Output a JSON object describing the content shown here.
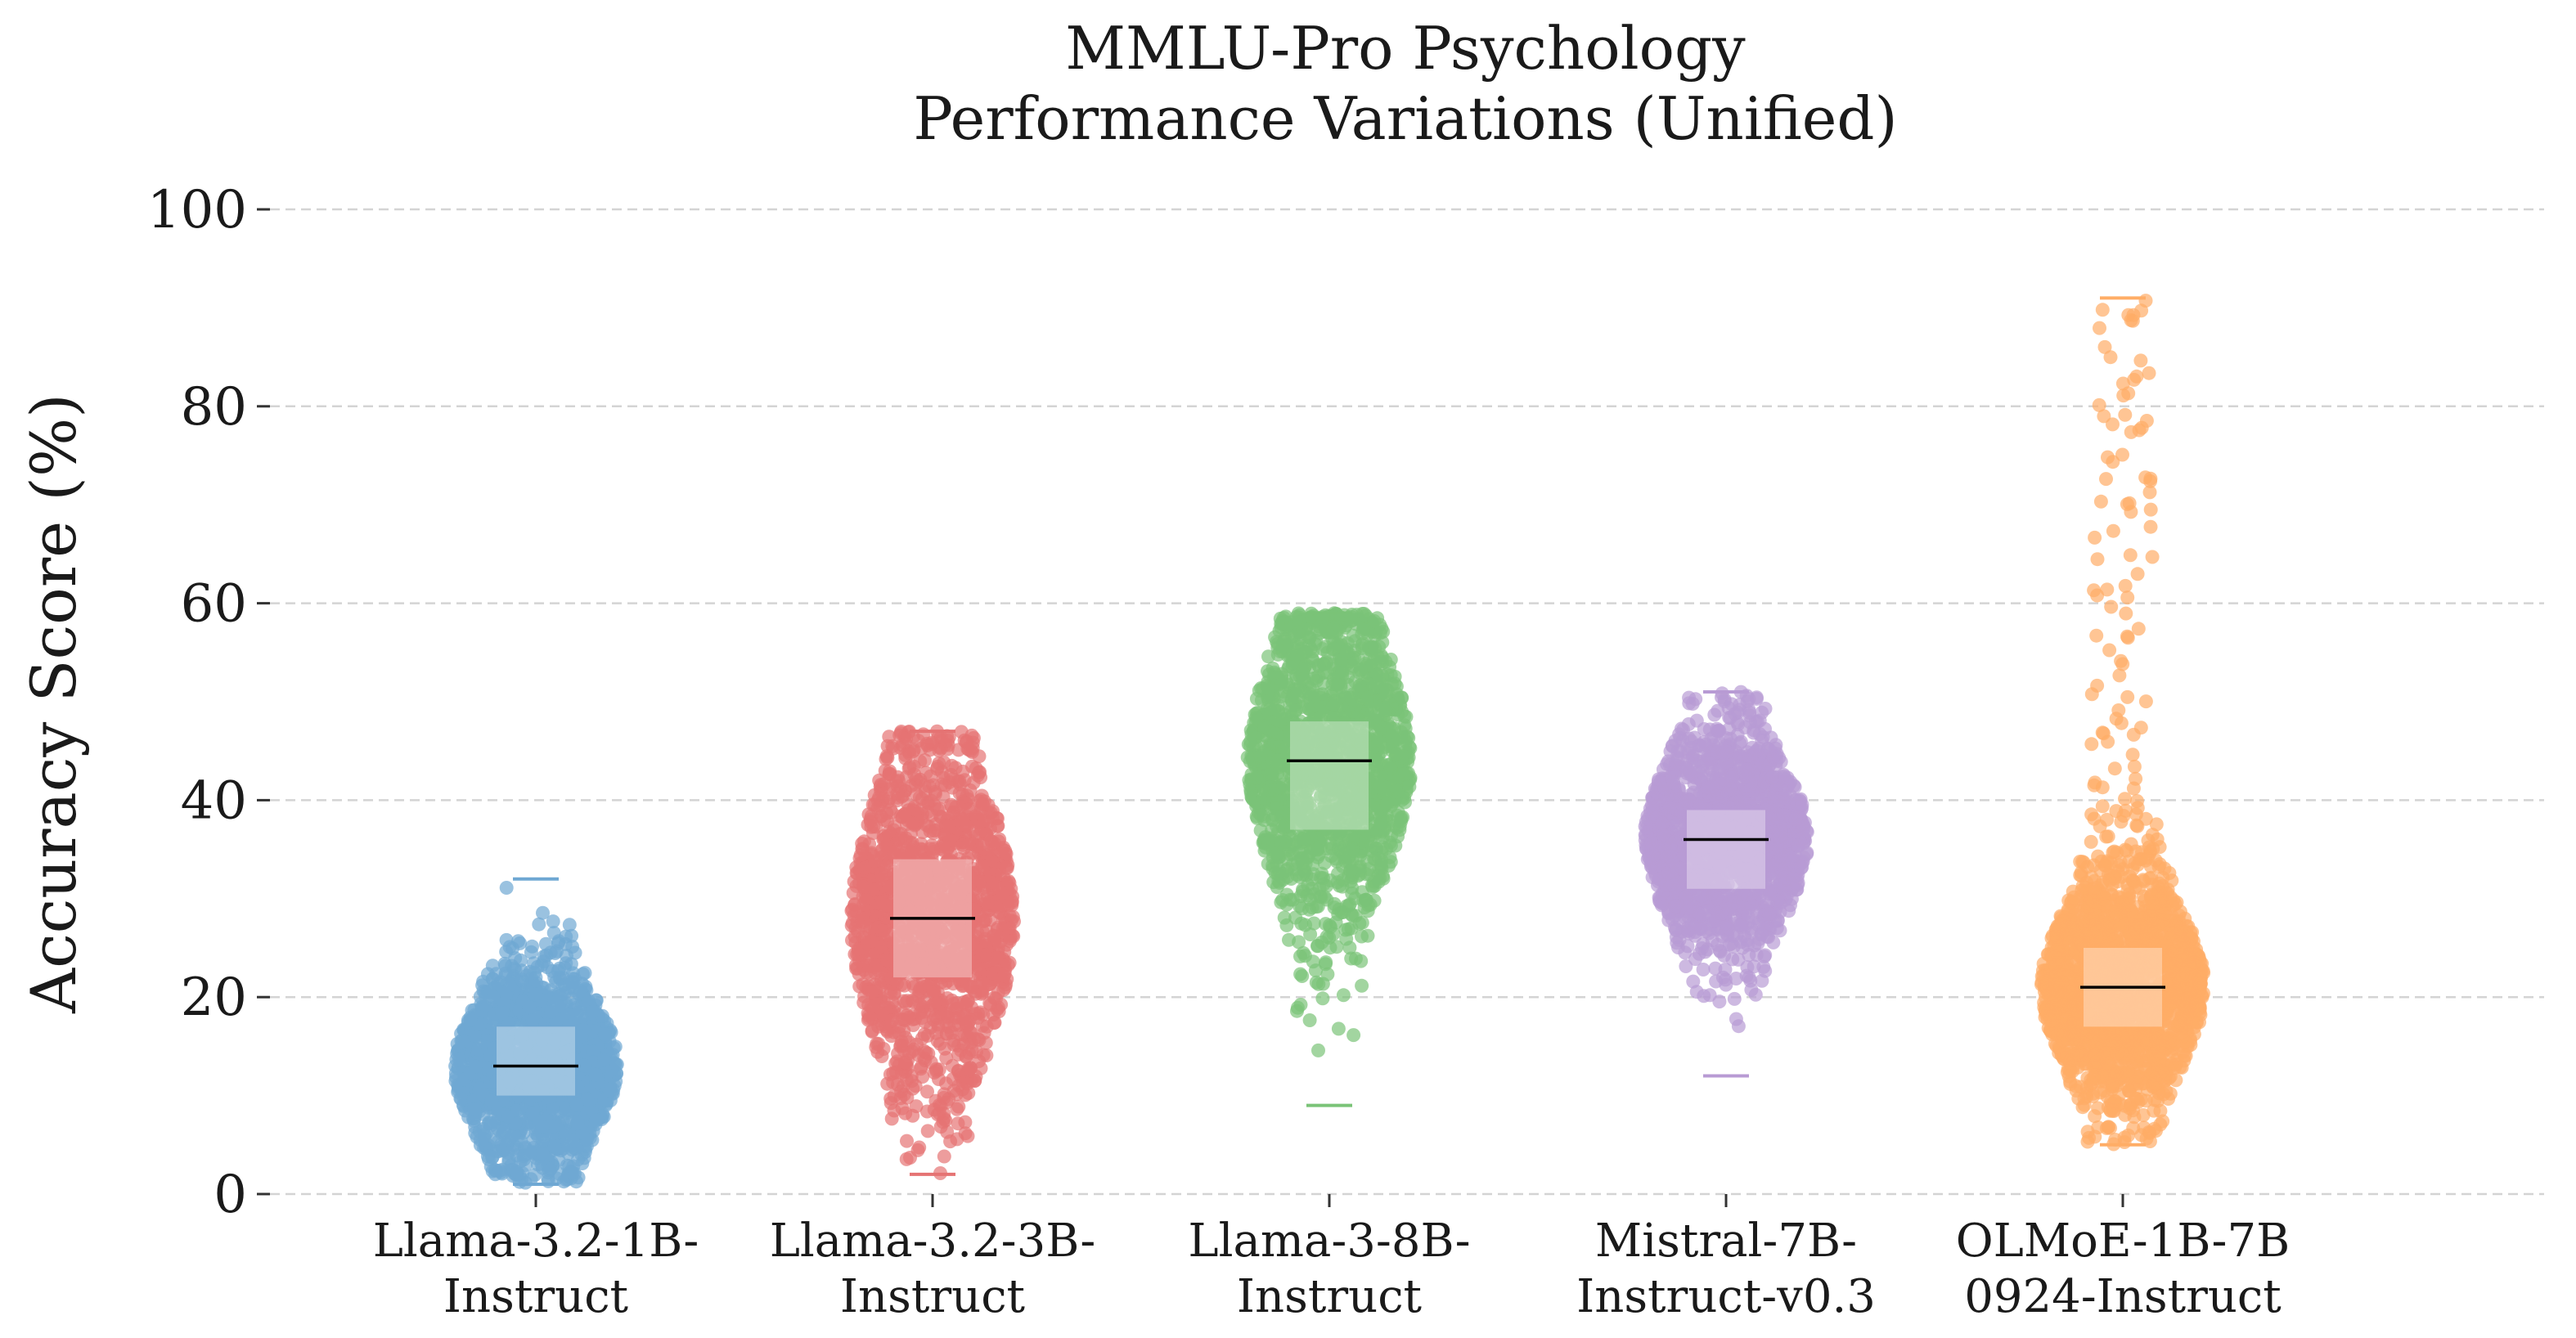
{
  "chart_data": {
    "type": "scatter",
    "title": "MMLU-Pro Psychology",
    "subtitle": "Performance Variations (Unified)",
    "xlabel": "",
    "ylabel": "Accuracy Score (%)",
    "ylim": [
      0,
      100
    ],
    "yticks": [
      0,
      20,
      40,
      60,
      80,
      100
    ],
    "grid": "horizontal-dashed",
    "categories": [
      {
        "line1": "Llama-3.2-1B-",
        "line2": "Instruct"
      },
      {
        "line1": "Llama-3.2-3B-",
        "line2": "Instruct"
      },
      {
        "line1": "Llama-3-8B-",
        "line2": "Instruct"
      },
      {
        "line1": "Mistral-7B-",
        "line2": "Instruct-v0.3"
      },
      {
        "line1": "OLMoE-1B-7B",
        "line2": "0924-Instruct"
      }
    ],
    "series": [
      {
        "color": "#6fa8d3",
        "min": 1,
        "q1": 10,
        "median": 13,
        "q3": 17,
        "max": 32
      },
      {
        "color": "#e57373",
        "min": 2,
        "q1": 22,
        "median": 28,
        "q3": 34,
        "max": 47
      },
      {
        "color": "#7ac377",
        "min": 9,
        "q1": 37,
        "median": 44,
        "q3": 48,
        "max": 59
      },
      {
        "color": "#b89bd4",
        "min": 12,
        "q1": 31,
        "median": 36,
        "q3": 39,
        "max": 51
      },
      {
        "color": "#ffad66",
        "min": 5,
        "q1": 17,
        "median": 21,
        "q3": 25,
        "max": 91
      }
    ]
  }
}
